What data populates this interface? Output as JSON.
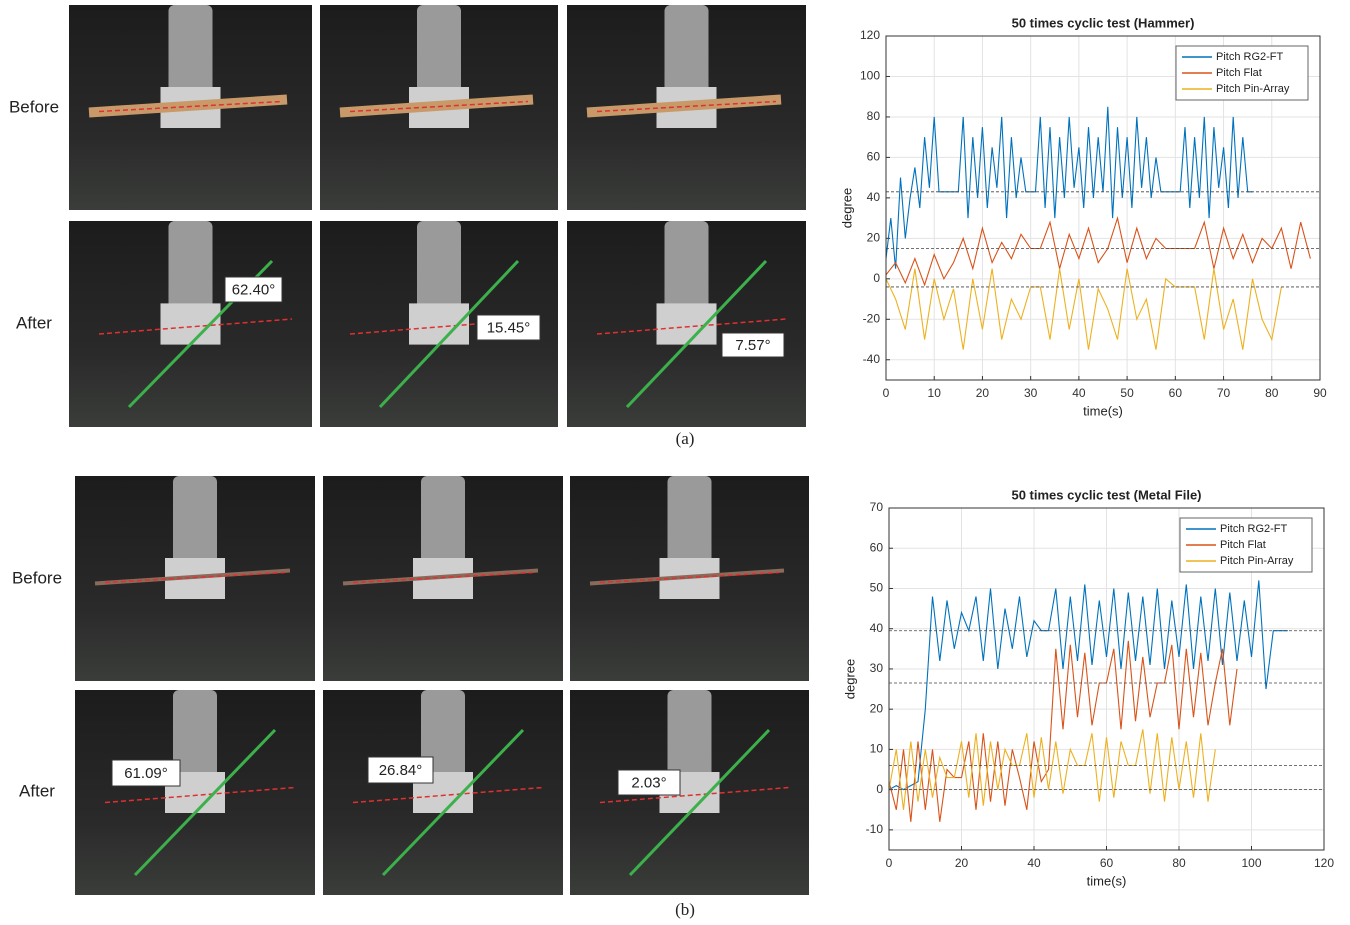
{
  "panels": [
    {
      "caption": "(a)",
      "row_labels": [
        "Before",
        "After"
      ],
      "angle_labels": [
        "62.40°",
        "15.45°",
        "7.57°"
      ]
    },
    {
      "caption": "(b)",
      "row_labels": [
        "Before",
        "After"
      ],
      "angle_labels": [
        "61.09°",
        "26.84°",
        "2.03°"
      ]
    }
  ],
  "chart_data": [
    {
      "type": "line",
      "title": "50 times cyclic test (Hammer)",
      "xlabel": "time(s)",
      "ylabel": "degree",
      "xlim": [
        0,
        90
      ],
      "ylim": [
        -50,
        120
      ],
      "xticks": [
        0,
        10,
        20,
        30,
        40,
        50,
        60,
        70,
        80,
        90
      ],
      "yticks": [
        -40,
        -20,
        0,
        20,
        40,
        60,
        80,
        100,
        120
      ],
      "grid": true,
      "legend": "upper right",
      "reference_lines": [
        43,
        15,
        -4
      ],
      "series": [
        {
          "name": "Pitch RG2-FT",
          "color": "#0072bd",
          "x": [
            0,
            1,
            2,
            3,
            4,
            5,
            6,
            7,
            8,
            9,
            10,
            11,
            12,
            13,
            14,
            15,
            16,
            17,
            18,
            19,
            20,
            21,
            22,
            23,
            24,
            25,
            26,
            27,
            28,
            29,
            30,
            31,
            32,
            33,
            34,
            35,
            36,
            37,
            38,
            39,
            40,
            41,
            42,
            43,
            44,
            45,
            46,
            47,
            48,
            49,
            50,
            51,
            52,
            53,
            54,
            55,
            56,
            57,
            58,
            59,
            60,
            61,
            62,
            63,
            64,
            65,
            66,
            67,
            68,
            69,
            70,
            71,
            72,
            73,
            74,
            75,
            76
          ],
          "values": [
            10,
            30,
            5,
            50,
            20,
            40,
            55,
            35,
            70,
            45,
            80,
            43,
            43,
            43,
            43,
            43,
            80,
            30,
            70,
            40,
            75,
            35,
            65,
            45,
            80,
            30,
            70,
            40,
            60,
            43,
            43,
            43,
            80,
            35,
            75,
            30,
            70,
            40,
            80,
            45,
            65,
            35,
            75,
            40,
            70,
            43,
            85,
            30,
            75,
            40,
            70,
            35,
            80,
            45,
            70,
            40,
            60,
            43,
            43,
            43,
            43,
            43,
            75,
            35,
            70,
            40,
            80,
            30,
            75,
            45,
            65,
            35,
            80,
            40,
            70,
            43,
            43
          ]
        },
        {
          "name": "Pitch Flat",
          "color": "#d95319",
          "x": [
            0,
            2,
            4,
            6,
            8,
            10,
            12,
            14,
            16,
            18,
            20,
            22,
            24,
            26,
            28,
            30,
            32,
            34,
            36,
            38,
            40,
            42,
            44,
            46,
            48,
            50,
            52,
            54,
            56,
            58,
            60,
            62,
            64,
            66,
            68,
            70,
            72,
            74,
            76,
            78,
            80,
            82,
            84,
            86,
            88
          ],
          "values": [
            2,
            8,
            -2,
            10,
            -3,
            12,
            0,
            8,
            20,
            5,
            25,
            8,
            18,
            10,
            22,
            15,
            15,
            28,
            5,
            22,
            10,
            25,
            8,
            15,
            30,
            8,
            25,
            10,
            20,
            15,
            15,
            15,
            15,
            28,
            5,
            25,
            10,
            22,
            8,
            20,
            15,
            25,
            5,
            28,
            10
          ]
        },
        {
          "name": "Pitch Pin-Array",
          "color": "#edb120",
          "x": [
            0,
            2,
            4,
            6,
            8,
            10,
            12,
            14,
            16,
            18,
            20,
            22,
            24,
            26,
            28,
            30,
            32,
            34,
            36,
            38,
            40,
            42,
            44,
            46,
            48,
            50,
            52,
            54,
            56,
            58,
            60,
            62,
            64,
            66,
            68,
            70,
            72,
            74,
            76,
            78,
            80,
            82
          ],
          "values": [
            0,
            -10,
            -25,
            5,
            -30,
            0,
            -20,
            -5,
            -35,
            0,
            -25,
            5,
            -30,
            -10,
            -20,
            -4,
            -4,
            -30,
            5,
            -25,
            0,
            -35,
            -5,
            -15,
            -30,
            5,
            -20,
            -10,
            -35,
            0,
            -4,
            -4,
            -4,
            -30,
            5,
            -25,
            -10,
            -35,
            0,
            -20,
            -30,
            -4
          ]
        }
      ]
    },
    {
      "type": "line",
      "title": "50 times cyclic test (Metal File)",
      "xlabel": "time(s)",
      "ylabel": "degree",
      "xlim": [
        0,
        120
      ],
      "ylim": [
        -15,
        70
      ],
      "xticks": [
        0,
        20,
        40,
        60,
        80,
        100,
        120
      ],
      "yticks": [
        -10,
        0,
        10,
        20,
        30,
        40,
        50,
        60,
        70
      ],
      "grid": true,
      "legend": "upper right",
      "reference_lines": [
        39.5,
        26.5,
        6,
        0
      ],
      "series": [
        {
          "name": "Pitch RG2-FT",
          "color": "#0072bd",
          "x": [
            0,
            2,
            4,
            6,
            8,
            10,
            12,
            14,
            16,
            18,
            20,
            22,
            24,
            26,
            28,
            30,
            32,
            34,
            36,
            38,
            40,
            42,
            44,
            46,
            48,
            50,
            52,
            54,
            56,
            58,
            60,
            62,
            64,
            66,
            68,
            70,
            72,
            74,
            76,
            78,
            80,
            82,
            84,
            86,
            88,
            90,
            92,
            94,
            96,
            98,
            100,
            102,
            104,
            106,
            108,
            110
          ],
          "values": [
            0,
            1,
            0,
            1,
            2,
            20,
            48,
            32,
            47,
            35,
            44,
            39.5,
            48,
            32,
            50,
            30,
            45,
            35,
            48,
            33,
            42,
            39.5,
            39.5,
            50,
            30,
            48,
            32,
            51,
            31,
            47,
            33,
            50,
            30,
            49,
            32,
            48,
            31,
            50,
            30,
            47,
            33,
            51,
            30,
            48,
            32,
            50,
            31,
            49,
            32,
            47,
            33,
            52,
            25,
            39.5,
            39.5,
            39.5
          ]
        },
        {
          "name": "Pitch Flat",
          "color": "#d95319",
          "x": [
            0,
            2,
            4,
            6,
            8,
            10,
            12,
            14,
            16,
            18,
            20,
            22,
            24,
            26,
            28,
            30,
            32,
            34,
            36,
            38,
            40,
            42,
            44,
            46,
            48,
            50,
            52,
            54,
            56,
            58,
            60,
            62,
            64,
            66,
            68,
            70,
            72,
            74,
            76,
            78,
            80,
            82,
            84,
            86,
            88,
            90,
            92,
            94,
            96
          ],
          "values": [
            2,
            -5,
            10,
            -8,
            12,
            -5,
            10,
            -8,
            5,
            3,
            3,
            12,
            -5,
            14,
            -3,
            12,
            -4,
            10,
            3,
            -5,
            12,
            2,
            5,
            35,
            15,
            36,
            18,
            34,
            16,
            26.5,
            26.5,
            35,
            15,
            37,
            17,
            33,
            18,
            26.5,
            26.5,
            36,
            15,
            35,
            18,
            34,
            16,
            26.5,
            35,
            16,
            30
          ]
        },
        {
          "name": "Pitch Pin-Array",
          "color": "#edb120",
          "x": [
            0,
            2,
            4,
            6,
            8,
            10,
            12,
            14,
            16,
            18,
            20,
            22,
            24,
            26,
            28,
            30,
            32,
            34,
            36,
            38,
            40,
            42,
            44,
            46,
            48,
            50,
            52,
            54,
            56,
            58,
            60,
            62,
            64,
            66,
            68,
            70,
            72,
            74,
            76,
            78,
            80,
            82,
            84,
            86,
            88,
            90
          ],
          "values": [
            0,
            10,
            -5,
            12,
            -3,
            10,
            -2,
            8,
            3,
            3,
            12,
            -2,
            14,
            -4,
            12,
            0,
            10,
            6,
            6,
            14,
            -2,
            13,
            0,
            12,
            -1,
            10,
            6,
            6,
            14,
            -3,
            13,
            -2,
            12,
            6,
            6,
            15,
            -1,
            14,
            -3,
            13,
            0,
            12,
            -2,
            14,
            -3,
            10
          ]
        }
      ]
    }
  ]
}
